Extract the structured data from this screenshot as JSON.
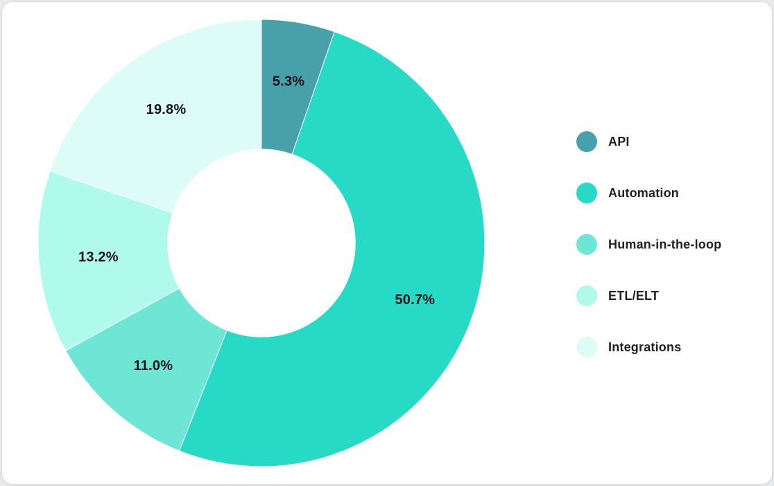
{
  "page": {
    "background_color": "#e8e9ea",
    "card_background_color": "#ffffff"
  },
  "chart_data": {
    "type": "pie",
    "variant": "donut",
    "hole_ratio": 0.42,
    "start_angle_deg": 0,
    "direction": "clockwise",
    "legend_position": "right",
    "grid": false,
    "title": "",
    "slices": [
      {
        "label": "API",
        "value": 5.3,
        "display": "5.3%",
        "color": "#48A0AB"
      },
      {
        "label": "Automation",
        "value": 50.7,
        "display": "50.7%",
        "color": "#27DAC6"
      },
      {
        "label": "Human-in-the-loop",
        "value": 11.0,
        "display": "11.0%",
        "color": "#6DE6D6"
      },
      {
        "label": "ETL/ELT",
        "value": 13.2,
        "display": "13.2%",
        "color": "#B0F9ED"
      },
      {
        "label": "Integrations",
        "value": 19.8,
        "display": "19.8%",
        "color": "#DEFCF7"
      }
    ],
    "slice_label_color": "#111417",
    "slice_border_color": "#ffffff"
  }
}
